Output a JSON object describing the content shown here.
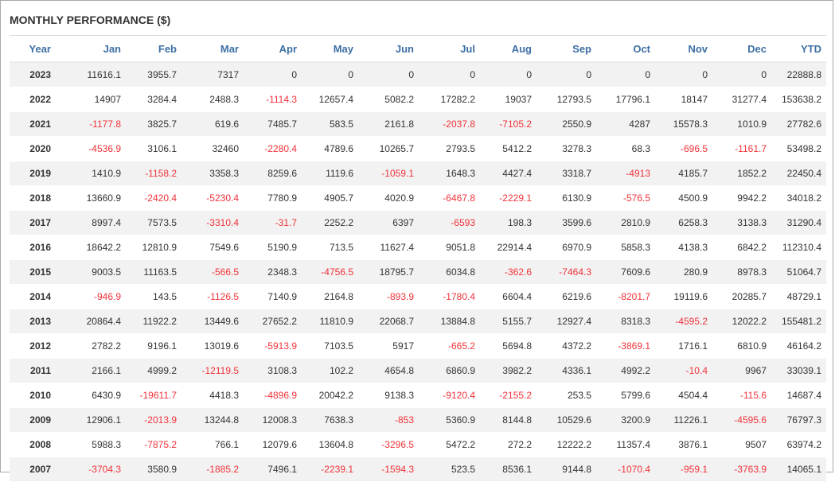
{
  "title": "MONTHLY PERFORMANCE ($)",
  "colors": {
    "header_text": "#3d6fa5",
    "negative": "#f0333a",
    "row_stripe": "#f2f2f2"
  },
  "columns": [
    "Year",
    "Jan",
    "Feb",
    "Mar",
    "Apr",
    "May",
    "Jun",
    "Jul",
    "Aug",
    "Sep",
    "Oct",
    "Nov",
    "Dec",
    "YTD"
  ],
  "rows": [
    [
      "2023",
      "11616.1",
      "3955.7",
      "7317",
      "0",
      "0",
      "0",
      "0",
      "0",
      "0",
      "0",
      "0",
      "0",
      "22888.8"
    ],
    [
      "2022",
      "14907",
      "3284.4",
      "2488.3",
      "-1114.3",
      "12657.4",
      "5082.2",
      "17282.2",
      "19037",
      "12793.5",
      "17796.1",
      "18147",
      "31277.4",
      "153638.2"
    ],
    [
      "2021",
      "-1177.8",
      "3825.7",
      "619.6",
      "7485.7",
      "583.5",
      "2161.8",
      "-2037.8",
      "-7105.2",
      "2550.9",
      "4287",
      "15578.3",
      "1010.9",
      "27782.6"
    ],
    [
      "2020",
      "-4536.9",
      "3106.1",
      "32460",
      "-2280.4",
      "4789.6",
      "10265.7",
      "2793.5",
      "5412.2",
      "3278.3",
      "68.3",
      "-696.5",
      "-1161.7",
      "53498.2"
    ],
    [
      "2019",
      "1410.9",
      "-1158.2",
      "3358.3",
      "8259.6",
      "1119.6",
      "-1059.1",
      "1648.3",
      "4427.4",
      "3318.7",
      "-4913",
      "4185.7",
      "1852.2",
      "22450.4"
    ],
    [
      "2018",
      "13660.9",
      "-2420.4",
      "-5230.4",
      "7780.9",
      "4905.7",
      "4020.9",
      "-6467.8",
      "-2229.1",
      "6130.9",
      "-576.5",
      "4500.9",
      "9942.2",
      "34018.2"
    ],
    [
      "2017",
      "8997.4",
      "7573.5",
      "-3310.4",
      "-31.7",
      "2252.2",
      "6397",
      "-6593",
      "198.3",
      "3599.6",
      "2810.9",
      "6258.3",
      "3138.3",
      "31290.4"
    ],
    [
      "2016",
      "18642.2",
      "12810.9",
      "7549.6",
      "5190.9",
      "713.5",
      "11627.4",
      "9051.8",
      "22914.4",
      "6970.9",
      "5858.3",
      "4138.3",
      "6842.2",
      "112310.4"
    ],
    [
      "2015",
      "9003.5",
      "11163.5",
      "-566.5",
      "2348.3",
      "-4756.5",
      "18795.7",
      "6034.8",
      "-362.6",
      "-7464.3",
      "7609.6",
      "280.9",
      "8978.3",
      "51064.7"
    ],
    [
      "2014",
      "-946.9",
      "143.5",
      "-1126.5",
      "7140.9",
      "2164.8",
      "-893.9",
      "-1780.4",
      "6604.4",
      "6219.6",
      "-8201.7",
      "19119.6",
      "20285.7",
      "48729.1"
    ],
    [
      "2013",
      "20864.4",
      "11922.2",
      "13449.6",
      "27652.2",
      "11810.9",
      "22068.7",
      "13884.8",
      "5155.7",
      "12927.4",
      "8318.3",
      "-4595.2",
      "12022.2",
      "155481.2"
    ],
    [
      "2012",
      "2782.2",
      "9196.1",
      "13019.6",
      "-5913.9",
      "7103.5",
      "5917",
      "-665.2",
      "5694.8",
      "4372.2",
      "-3869.1",
      "1716.1",
      "6810.9",
      "46164.2"
    ],
    [
      "2011",
      "2166.1",
      "4999.2",
      "-12119.5",
      "3108.3",
      "102.2",
      "4654.8",
      "6860.9",
      "3982.2",
      "4336.1",
      "4992.2",
      "-10.4",
      "9967",
      "33039.1"
    ],
    [
      "2010",
      "6430.9",
      "-19611.7",
      "4418.3",
      "-4896.9",
      "20042.2",
      "9138.3",
      "-9120.4",
      "-2155.2",
      "253.5",
      "5799.6",
      "4504.4",
      "-115.6",
      "14687.4"
    ],
    [
      "2009",
      "12906.1",
      "-2013.9",
      "13244.8",
      "12008.3",
      "7638.3",
      "-853",
      "5360.9",
      "8144.8",
      "10529.6",
      "3200.9",
      "11226.1",
      "-4595.6",
      "76797.3"
    ],
    [
      "2008",
      "5988.3",
      "-7875.2",
      "766.1",
      "12079.6",
      "13604.8",
      "-3296.5",
      "5472.2",
      "272.2",
      "12222.2",
      "11357.4",
      "3876.1",
      "9507",
      "63974.2"
    ],
    [
      "2007",
      "-3704.3",
      "3580.9",
      "-1885.2",
      "7496.1",
      "-2239.1",
      "-1594.3",
      "523.5",
      "8536.1",
      "9144.8",
      "-1070.4",
      "-959.1",
      "-3763.9",
      "14065.1"
    ]
  ]
}
